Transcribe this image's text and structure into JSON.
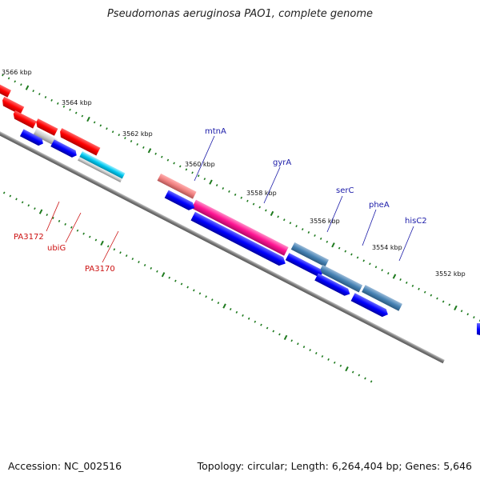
{
  "header": {
    "title": "Pseudomonas aeruginosa PAO1, complete genome"
  },
  "footer": {
    "accession": "Accession: NC_002516",
    "summary": "Topology: circular; Length: 6,264,404 bp; Genes: 5,646"
  },
  "colors": {
    "backbone": "#808080",
    "tick": "#1e7a1e",
    "label_blue": "#1a1aa8",
    "label_red": "#cc1010"
  },
  "scale_labels": [
    "3566 kbp",
    "3564 kbp",
    "3562 kbp",
    "3560 kbp",
    "3558 kbp",
    "3556 kbp",
    "3554 kbp",
    "3552 kbp"
  ],
  "gene_labels": [
    {
      "text": "mtnA",
      "color": "#1a1aa8"
    },
    {
      "text": "gyrA",
      "color": "#1a1aa8"
    },
    {
      "text": "serC",
      "color": "#1a1aa8"
    },
    {
      "text": "pheA",
      "color": "#1a1aa8"
    },
    {
      "text": "hisC2",
      "color": "#1a1aa8"
    },
    {
      "text": "PA3172",
      "color": "#cc1010"
    },
    {
      "text": "ubiG",
      "color": "#cc1010"
    },
    {
      "text": "PA3170",
      "color": "#cc1010"
    }
  ]
}
